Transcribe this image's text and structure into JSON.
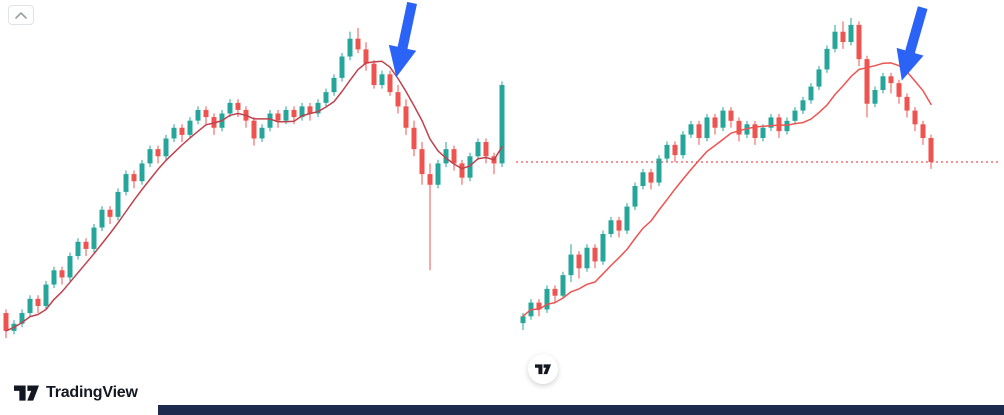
{
  "logo": {
    "text": "TradingView"
  },
  "colors": {
    "up": "#26a69a",
    "down": "#ef5350",
    "arrow": "#2b63f6",
    "support": "#ef5350",
    "bottom_bar": "#1d2a4d",
    "logo": "#131722",
    "chevron": "#9aa0a6"
  },
  "chart_data": [
    {
      "type": "candlestick",
      "title": "",
      "xlabel": "",
      "ylabel": "",
      "grid": false,
      "legend": false,
      "ma_window": 6,
      "ma_color": "#c0414e",
      "annotation": "blue-down-arrow",
      "candles": [
        [
          16,
          17,
          9,
          11
        ],
        [
          11,
          14,
          10,
          13
        ],
        [
          13,
          17,
          12,
          16
        ],
        [
          16,
          21,
          15,
          20
        ],
        [
          20,
          21,
          16,
          18
        ],
        [
          18,
          25,
          17,
          24
        ],
        [
          24,
          29,
          23,
          28
        ],
        [
          28,
          29,
          24,
          26
        ],
        [
          26,
          33,
          25,
          32
        ],
        [
          32,
          37,
          31,
          36
        ],
        [
          36,
          37,
          32,
          34
        ],
        [
          34,
          41,
          33,
          40
        ],
        [
          40,
          46,
          39,
          45
        ],
        [
          45,
          46,
          41,
          43
        ],
        [
          43,
          51,
          42,
          50
        ],
        [
          50,
          56,
          49,
          55
        ],
        [
          55,
          56,
          51,
          53
        ],
        [
          53,
          59,
          52,
          58
        ],
        [
          58,
          63,
          57,
          62
        ],
        [
          62,
          63,
          58,
          60
        ],
        [
          60,
          66,
          59,
          65
        ],
        [
          65,
          69,
          64,
          68
        ],
        [
          68,
          69,
          64,
          66
        ],
        [
          66,
          71,
          65,
          70
        ],
        [
          70,
          74,
          69,
          73
        ],
        [
          73,
          74,
          69,
          71
        ],
        [
          71,
          72,
          66,
          68
        ],
        [
          68,
          73,
          67,
          72
        ],
        [
          72,
          76,
          71,
          75
        ],
        [
          75,
          76,
          71,
          73
        ],
        [
          73,
          74,
          68,
          70
        ],
        [
          70,
          71,
          63,
          65
        ],
        [
          65,
          69,
          64,
          68
        ],
        [
          68,
          73,
          67,
          72
        ],
        [
          72,
          73,
          68,
          70
        ],
        [
          70,
          74,
          69,
          73
        ],
        [
          73,
          74,
          69,
          71
        ],
        [
          71,
          75,
          70,
          74
        ],
        [
          74,
          75,
          70,
          72
        ],
        [
          72,
          76,
          71,
          75
        ],
        [
          75,
          79,
          74,
          78
        ],
        [
          78,
          83,
          77,
          82
        ],
        [
          82,
          89,
          81,
          88
        ],
        [
          88,
          95,
          87,
          93
        ],
        [
          93,
          96,
          89,
          90
        ],
        [
          90,
          92,
          84,
          86
        ],
        [
          86,
          87,
          79,
          80
        ],
        [
          80,
          84,
          79,
          83
        ],
        [
          83,
          84,
          77,
          78
        ],
        [
          78,
          80,
          72,
          74
        ],
        [
          74,
          76,
          66,
          68
        ],
        [
          68,
          70,
          60,
          62
        ],
        [
          62,
          64,
          52,
          55
        ],
        [
          55,
          58,
          28,
          52
        ],
        [
          52,
          59,
          51,
          58
        ],
        [
          58,
          64,
          57,
          62
        ],
        [
          62,
          63,
          56,
          58
        ],
        [
          58,
          59,
          52,
          54
        ],
        [
          54,
          61,
          53,
          60
        ],
        [
          60,
          65,
          59,
          64
        ],
        [
          64,
          65,
          58,
          60
        ],
        [
          60,
          61,
          55,
          58
        ],
        [
          58,
          81,
          57,
          80
        ]
      ]
    },
    {
      "type": "candlestick",
      "title": "",
      "xlabel": "",
      "ylabel": "",
      "grid": false,
      "legend": false,
      "ma_window": 10,
      "ma_color": "#ef5350",
      "support_price": 55,
      "annotation": "blue-down-arrow",
      "candles": [
        [
          8,
          11,
          6,
          10
        ],
        [
          10,
          15,
          9,
          14
        ],
        [
          14,
          15,
          10,
          12
        ],
        [
          12,
          19,
          11,
          18
        ],
        [
          18,
          19,
          14,
          16
        ],
        [
          16,
          23,
          15,
          22
        ],
        [
          22,
          31,
          20,
          28
        ],
        [
          28,
          29,
          21,
          24
        ],
        [
          24,
          31,
          23,
          30
        ],
        [
          30,
          31,
          24,
          26
        ],
        [
          26,
          35,
          25,
          34
        ],
        [
          34,
          39,
          33,
          38
        ],
        [
          38,
          39,
          33,
          35
        ],
        [
          35,
          43,
          34,
          42
        ],
        [
          42,
          49,
          41,
          48
        ],
        [
          48,
          53,
          47,
          52
        ],
        [
          52,
          53,
          47,
          49
        ],
        [
          49,
          57,
          48,
          56
        ],
        [
          56,
          61,
          55,
          60
        ],
        [
          60,
          61,
          55,
          57
        ],
        [
          57,
          64,
          56,
          63
        ],
        [
          63,
          67,
          62,
          66
        ],
        [
          66,
          67,
          60,
          62
        ],
        [
          62,
          69,
          61,
          68
        ],
        [
          68,
          69,
          63,
          65
        ],
        [
          65,
          71,
          64,
          70
        ],
        [
          70,
          71,
          65,
          67
        ],
        [
          67,
          68,
          61,
          63
        ],
        [
          63,
          67,
          62,
          66
        ],
        [
          66,
          67,
          60,
          62
        ],
        [
          62,
          66,
          61,
          65
        ],
        [
          65,
          69,
          64,
          68
        ],
        [
          68,
          69,
          62,
          64
        ],
        [
          64,
          68,
          63,
          67
        ],
        [
          67,
          71,
          66,
          70
        ],
        [
          70,
          74,
          69,
          73
        ],
        [
          73,
          78,
          72,
          77
        ],
        [
          77,
          83,
          76,
          82
        ],
        [
          82,
          89,
          81,
          88
        ],
        [
          88,
          95,
          87,
          93
        ],
        [
          93,
          96,
          88,
          90
        ],
        [
          90,
          97,
          89,
          95
        ],
        [
          95,
          96,
          83,
          85
        ],
        [
          85,
          86,
          68,
          72
        ],
        [
          72,
          77,
          71,
          76
        ],
        [
          76,
          81,
          75,
          80
        ],
        [
          80,
          81,
          75,
          78
        ],
        [
          78,
          79,
          72,
          74
        ],
        [
          74,
          75,
          68,
          70
        ],
        [
          70,
          71,
          64,
          66
        ],
        [
          66,
          67,
          60,
          62
        ],
        [
          62,
          63,
          53,
          55
        ]
      ]
    }
  ]
}
